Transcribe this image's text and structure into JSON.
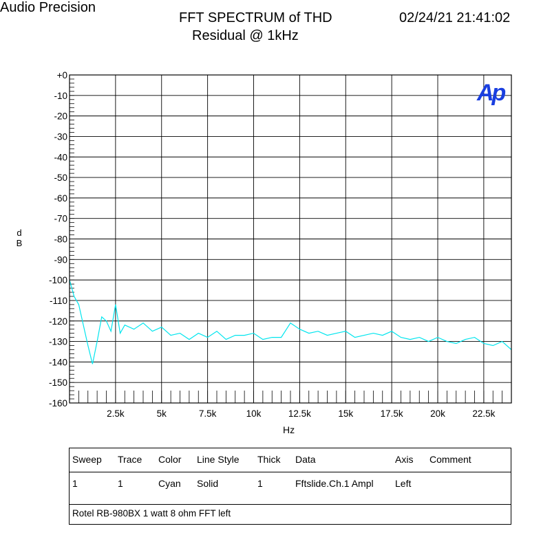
{
  "header": {
    "brand": "Audio Precision",
    "title_line1": "FFT SPECTRUM of THD",
    "title_line2": "Residual @ 1kHz",
    "timestamp": "02/24/21 21:41:02"
  },
  "logo_text": "Ap",
  "chart_data": {
    "type": "line",
    "title": "FFT SPECTRUM of THD Residual @ 1kHz",
    "xlabel": "Hz",
    "ylabel": "dB",
    "xlim": [
      0,
      24000
    ],
    "ylim": [
      -160,
      0
    ],
    "grid": true,
    "x_ticks": [
      2500,
      5000,
      7500,
      10000,
      12500,
      15000,
      17500,
      20000,
      22500
    ],
    "x_tick_labels": [
      "2.5k",
      "5k",
      "7.5k",
      "10k",
      "12.5k",
      "15k",
      "17.5k",
      "20k",
      "22.5k"
    ],
    "y_ticks": [
      0,
      -10,
      -20,
      -30,
      -40,
      -50,
      -60,
      -70,
      -80,
      -90,
      -100,
      -110,
      -120,
      -130,
      -140,
      -150,
      -160
    ],
    "y_tick_labels": [
      "+0",
      "-10",
      "-20",
      "-30",
      "-40",
      "-50",
      "-60",
      "-70",
      "-80",
      "-90",
      "-100",
      "-110",
      "-120",
      "-130",
      "-140",
      "-150",
      "-160"
    ],
    "series_color": "#00e5ee",
    "series": [
      {
        "name": "Fftslide.Ch.1 Ampl",
        "x": [
          0,
          250,
          500,
          750,
          1000,
          1250,
          1500,
          1750,
          2000,
          2250,
          2500,
          2750,
          3000,
          3500,
          4000,
          4500,
          5000,
          5500,
          6000,
          6500,
          7000,
          7500,
          8000,
          8500,
          9000,
          9500,
          10000,
          10500,
          11000,
          11500,
          12000,
          12500,
          13000,
          13500,
          14000,
          14500,
          15000,
          15500,
          16000,
          16500,
          17000,
          17500,
          18000,
          18500,
          19000,
          19500,
          20000,
          20500,
          21000,
          21500,
          22000,
          22500,
          23000,
          23500,
          24000
        ],
        "y": [
          -100,
          -108,
          -112,
          -122,
          -132,
          -141,
          -130,
          -118,
          -120,
          -125,
          -112,
          -126,
          -122,
          -124,
          -121,
          -125,
          -123,
          -127,
          -126,
          -129,
          -126,
          -128,
          -125,
          -129,
          -127,
          -127,
          -126,
          -129,
          -128,
          -128,
          -121,
          -124,
          -126,
          -125,
          -127,
          -126,
          -125,
          -128,
          -127,
          -126,
          -127,
          -125,
          -128,
          -129,
          -128,
          -130,
          -128,
          -130,
          -131,
          -129,
          -128,
          -131,
          -132,
          -130,
          -134
        ]
      }
    ]
  },
  "legend": {
    "headers": [
      "Sweep",
      "Trace",
      "Color",
      "Line Style",
      "Thick",
      "Data",
      "Axis",
      "Comment"
    ],
    "row": [
      "1",
      "1",
      "Cyan",
      "Solid",
      "1",
      "Fftslide.Ch.1 Ampl",
      "Left",
      ""
    ],
    "note": "Rotel RB-980BX 1 watt 8 ohm FFT left"
  }
}
